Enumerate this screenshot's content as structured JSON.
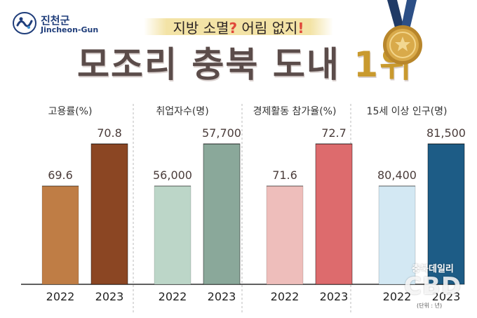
{
  "logo": {
    "name_kr": "진천군",
    "name_en": "Jincheon-Gun"
  },
  "subtitle": {
    "part1": "지방 소멸",
    "mark1": "?",
    "part2": "어림 없지",
    "mark2": "!"
  },
  "headline": {
    "main": "모조리 충북 도내",
    "rank": "1위"
  },
  "watermark": {
    "top": "충북데일리",
    "logo": "CBD"
  },
  "unit_note": "(단위 : 년)",
  "chart_data": [
    {
      "type": "bar",
      "title": "고용률(%)",
      "categories": [
        "2022",
        "2023"
      ],
      "values": [
        69.6,
        70.8
      ],
      "value_labels": [
        "69.6",
        "70.8"
      ],
      "colors": [
        "#bf7d45",
        "#8b4623"
      ]
    },
    {
      "type": "bar",
      "title": "취업자수(명)",
      "categories": [
        "2022",
        "2023"
      ],
      "values": [
        56000,
        57700
      ],
      "value_labels": [
        "56,000",
        "57,700"
      ],
      "colors": [
        "#bcd6c8",
        "#8aa89a"
      ]
    },
    {
      "type": "bar",
      "title": "경제활동 참가율(%)",
      "categories": [
        "2022",
        "2023"
      ],
      "values": [
        71.6,
        72.7
      ],
      "value_labels": [
        "71.6",
        "72.7"
      ],
      "colors": [
        "#eebebb",
        "#dd6b6d"
      ]
    },
    {
      "type": "bar",
      "title": "15세 이상 인구(명)",
      "categories": [
        "2022",
        "2023"
      ],
      "values": [
        80400,
        81500
      ],
      "value_labels": [
        "80,400",
        "81,500"
      ],
      "colors": [
        "#d3e8f3",
        "#1d5c86"
      ]
    }
  ]
}
